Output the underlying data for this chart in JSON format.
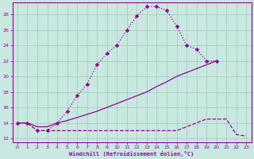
{
  "bg_color": "#c8e8e0",
  "grid_color": "#a0c8c0",
  "line_color": "#990099",
  "xlabel": "Windchill (Refroidissement éolien,°C)",
  "xlim": [
    -0.5,
    23.5
  ],
  "ylim": [
    11.5,
    29.5
  ],
  "xticks": [
    0,
    1,
    2,
    3,
    4,
    5,
    6,
    7,
    8,
    9,
    10,
    11,
    12,
    13,
    14,
    15,
    16,
    17,
    18,
    19,
    20,
    21,
    22,
    23
  ],
  "yticks": [
    12,
    14,
    16,
    18,
    20,
    22,
    24,
    26,
    28
  ],
  "s1_x": [
    0,
    1,
    2,
    3,
    4,
    5,
    6,
    7,
    8,
    9,
    10,
    11,
    12,
    13,
    14,
    15,
    16,
    17,
    18,
    19,
    20
  ],
  "s1_y": [
    14,
    14,
    13,
    13,
    14,
    15.5,
    17.5,
    19.0,
    21.5,
    23.0,
    24.0,
    26.0,
    27.8,
    29.0,
    29.0,
    28.5,
    26.5,
    24.0,
    23.5,
    22.0,
    22.0
  ],
  "s2_x": [
    0,
    1,
    2,
    3,
    4,
    5,
    6,
    7,
    8,
    9,
    10,
    11,
    12,
    13,
    14,
    15,
    16,
    17,
    18,
    19,
    20
  ],
  "s2_y": [
    14,
    14,
    13.5,
    13.5,
    14,
    14.3,
    14.7,
    15.1,
    15.5,
    16.0,
    16.5,
    17.0,
    17.5,
    18.0,
    18.7,
    19.3,
    20.0,
    20.5,
    21.0,
    21.5,
    22.0
  ],
  "s3_x": [
    0,
    1,
    2,
    3,
    4,
    5,
    6,
    7,
    8,
    9,
    10,
    11,
    12,
    13,
    14,
    15,
    16,
    17,
    18,
    19,
    20,
    21,
    22,
    23
  ],
  "s3_y": [
    14,
    14,
    13,
    13,
    13,
    13,
    13,
    13,
    13,
    13,
    13,
    13,
    13,
    13,
    13,
    13,
    13,
    13.5,
    14.0,
    14.5,
    14.5,
    14.5,
    12.5,
    12.3
  ]
}
